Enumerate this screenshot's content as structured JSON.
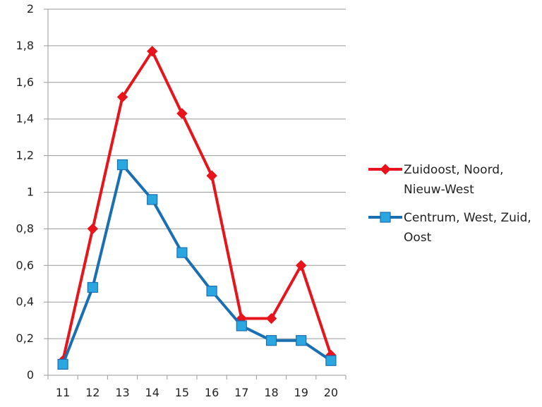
{
  "chart_data": {
    "type": "line",
    "categories": [
      "11",
      "12",
      "13",
      "14",
      "15",
      "16",
      "17",
      "18",
      "19",
      "20"
    ],
    "ylim": [
      0,
      2
    ],
    "yticks": [
      "0",
      "0,2",
      "0,4",
      "0,6",
      "0,8",
      "1",
      "1,2",
      "1,4",
      "1,6",
      "1,8",
      "2"
    ],
    "grid": true,
    "legend_position": "right",
    "series": [
      {
        "name_lines": [
          "Zuidoost, Noord,",
          "Nieuw-West"
        ],
        "color": "#e8141b",
        "marker": "diamond",
        "values": [
          0.08,
          0.8,
          1.52,
          1.77,
          1.43,
          1.09,
          0.31,
          0.31,
          0.6,
          0.11
        ]
      },
      {
        "name_lines": [
          "Centrum, West, Zuid,",
          "Oost"
        ],
        "color": "#1a6fb3",
        "marker_fill": "#2aa7e0",
        "marker": "square",
        "values": [
          0.06,
          0.48,
          1.15,
          0.96,
          0.67,
          0.46,
          0.27,
          0.19,
          0.19,
          0.08
        ]
      }
    ]
  }
}
